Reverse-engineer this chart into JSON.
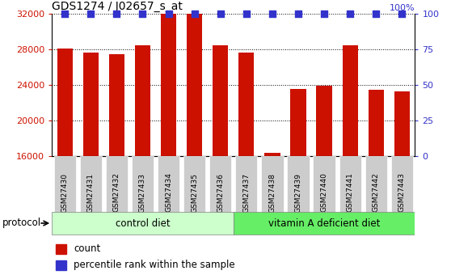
{
  "title": "GDS1274 / J02657_s_at",
  "samples": [
    "GSM27430",
    "GSM27431",
    "GSM27432",
    "GSM27433",
    "GSM27434",
    "GSM27435",
    "GSM27436",
    "GSM27437",
    "GSM27438",
    "GSM27439",
    "GSM27440",
    "GSM27441",
    "GSM27442",
    "GSM27443"
  ],
  "count_values": [
    28100,
    27700,
    27500,
    28500,
    32000,
    32000,
    28500,
    27700,
    16400,
    23600,
    23900,
    28500,
    23500,
    23300
  ],
  "percentile_values": [
    100,
    100,
    100,
    100,
    100,
    100,
    100,
    100,
    100,
    100,
    100,
    100,
    100,
    100
  ],
  "ylim_left": [
    16000,
    32000
  ],
  "ylim_right": [
    0,
    100
  ],
  "yticks_left": [
    16000,
    20000,
    24000,
    28000,
    32000
  ],
  "yticks_right": [
    0,
    25,
    50,
    75,
    100
  ],
  "bar_color": "#CC1100",
  "dot_color": "#3333CC",
  "n_control": 7,
  "n_vitamin": 7,
  "control_label": "control diet",
  "vitamin_label": "vitamin A deficient diet",
  "protocol_label": "protocol",
  "control_color": "#CCFFCC",
  "vitamin_color": "#66EE66",
  "tick_bg_color": "#CCCCCC",
  "legend_count_label": "count",
  "legend_pct_label": "percentile rank within the sample",
  "bar_width": 0.6,
  "dot_size": 30,
  "label_fontsize": 8,
  "title_fontsize": 10
}
